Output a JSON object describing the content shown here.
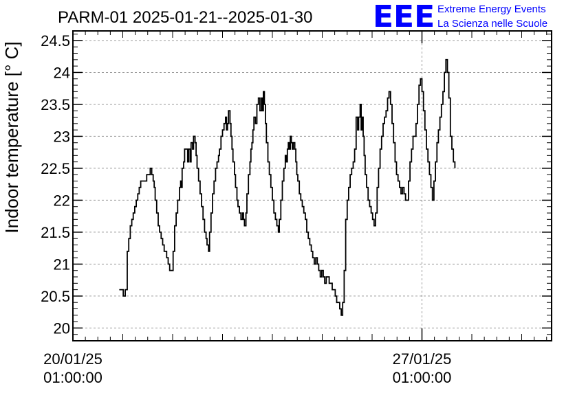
{
  "title": "PARM-01 2025-01-21--2025-01-30",
  "logo": {
    "mark": "EEE",
    "line1": "Extreme Energy Events",
    "line2": "La Scienza nelle Scuole",
    "color": "#0000ff"
  },
  "chart_data": {
    "type": "line",
    "title": "PARM-01 2025-01-21--2025-01-30",
    "xlabel": "",
    "ylabel": "Indoor temperature [° C]",
    "xlim_days": [
      0.0,
      9.6
    ],
    "ylim": [
      19.8,
      24.65
    ],
    "grid": true,
    "line_color": "#000000",
    "yticks": [
      20,
      20.5,
      21,
      21.5,
      22,
      22.5,
      23,
      23.5,
      24,
      24.5
    ],
    "ytick_labels": [
      "20",
      "20.5",
      "21",
      "21.5",
      "22",
      "22.5",
      "23",
      "23.5",
      "24",
      "24.5"
    ],
    "xticks": [
      {
        "x": 0.0,
        "line1": "20/01/25",
        "line2": "01:00:00"
      },
      {
        "x": 7.0,
        "line1": "27/01/25",
        "line2": "01:00:00"
      }
    ],
    "x_units": "days since 20/01/25 01:00:00",
    "series": [
      {
        "name": "",
        "points": [
          [
            0.93,
            20.6
          ],
          [
            1.01,
            20.6
          ],
          [
            1.01,
            20.5
          ],
          [
            1.05,
            20.5
          ],
          [
            1.05,
            20.6
          ],
          [
            1.09,
            20.6
          ],
          [
            1.09,
            21.2
          ],
          [
            1.12,
            21.4
          ],
          [
            1.15,
            21.6
          ],
          [
            1.18,
            21.7
          ],
          [
            1.21,
            21.8
          ],
          [
            1.24,
            21.9
          ],
          [
            1.27,
            22.0
          ],
          [
            1.3,
            22.1
          ],
          [
            1.33,
            22.2
          ],
          [
            1.36,
            22.3
          ],
          [
            1.42,
            22.3
          ],
          [
            1.46,
            22.3
          ],
          [
            1.48,
            22.4
          ],
          [
            1.52,
            22.4
          ],
          [
            1.55,
            22.5
          ],
          [
            1.58,
            22.4
          ],
          [
            1.61,
            22.3
          ],
          [
            1.63,
            22.2
          ],
          [
            1.65,
            22.0
          ],
          [
            1.68,
            21.8
          ],
          [
            1.71,
            21.6
          ],
          [
            1.74,
            21.5
          ],
          [
            1.77,
            21.4
          ],
          [
            1.8,
            21.3
          ],
          [
            1.83,
            21.2
          ],
          [
            1.86,
            21.2
          ],
          [
            1.88,
            21.1
          ],
          [
            1.91,
            21.0
          ],
          [
            1.94,
            20.9
          ],
          [
            1.99,
            20.9
          ],
          [
            2.01,
            21.2
          ],
          [
            2.04,
            21.6
          ],
          [
            2.07,
            21.8
          ],
          [
            2.1,
            22.0
          ],
          [
            2.14,
            22.2
          ],
          [
            2.16,
            22.3
          ],
          [
            2.17,
            22.2
          ],
          [
            2.19,
            22.5
          ],
          [
            2.22,
            22.6
          ],
          [
            2.24,
            22.8
          ],
          [
            2.28,
            22.8
          ],
          [
            2.3,
            22.6
          ],
          [
            2.32,
            22.8
          ],
          [
            2.35,
            22.6
          ],
          [
            2.37,
            22.9
          ],
          [
            2.4,
            22.8
          ],
          [
            2.42,
            23.0
          ],
          [
            2.45,
            22.9
          ],
          [
            2.47,
            22.7
          ],
          [
            2.49,
            22.5
          ],
          [
            2.52,
            22.3
          ],
          [
            2.55,
            22.1
          ],
          [
            2.58,
            21.9
          ],
          [
            2.61,
            21.7
          ],
          [
            2.64,
            21.5
          ],
          [
            2.67,
            21.4
          ],
          [
            2.69,
            21.3
          ],
          [
            2.72,
            21.2
          ],
          [
            2.74,
            21.5
          ],
          [
            2.77,
            21.8
          ],
          [
            2.8,
            22.1
          ],
          [
            2.83,
            22.3
          ],
          [
            2.86,
            22.5
          ],
          [
            2.89,
            22.6
          ],
          [
            2.92,
            22.7
          ],
          [
            2.94,
            22.8
          ],
          [
            2.97,
            23.0
          ],
          [
            3.0,
            23.1
          ],
          [
            3.03,
            23.2
          ],
          [
            3.06,
            23.3
          ],
          [
            3.08,
            23.1
          ],
          [
            3.1,
            23.2
          ],
          [
            3.12,
            23.4
          ],
          [
            3.15,
            23.2
          ],
          [
            3.17,
            23.0
          ],
          [
            3.19,
            22.8
          ],
          [
            3.21,
            22.6
          ],
          [
            3.24,
            22.4
          ],
          [
            3.26,
            22.2
          ],
          [
            3.29,
            22.0
          ],
          [
            3.31,
            21.9
          ],
          [
            3.34,
            21.8
          ],
          [
            3.37,
            21.7
          ],
          [
            3.4,
            21.8
          ],
          [
            3.42,
            21.7
          ],
          [
            3.44,
            21.6
          ],
          [
            3.47,
            21.8
          ],
          [
            3.49,
            22.1
          ],
          [
            3.52,
            22.4
          ],
          [
            3.55,
            22.6
          ],
          [
            3.57,
            22.8
          ],
          [
            3.59,
            22.9
          ],
          [
            3.61,
            23.1
          ],
          [
            3.63,
            23.3
          ],
          [
            3.66,
            23.2
          ],
          [
            3.69,
            23.5
          ],
          [
            3.72,
            23.6
          ],
          [
            3.75,
            23.4
          ],
          [
            3.78,
            23.6
          ],
          [
            3.8,
            23.4
          ],
          [
            3.82,
            23.7
          ],
          [
            3.84,
            23.5
          ],
          [
            3.86,
            23.2
          ],
          [
            3.88,
            22.9
          ],
          [
            3.91,
            22.6
          ],
          [
            3.94,
            22.4
          ],
          [
            3.97,
            22.2
          ],
          [
            4.0,
            22.0
          ],
          [
            4.03,
            21.8
          ],
          [
            4.06,
            21.7
          ],
          [
            4.09,
            21.6
          ],
          [
            4.12,
            21.5
          ],
          [
            4.14,
            21.7
          ],
          [
            4.17,
            22.0
          ],
          [
            4.2,
            22.3
          ],
          [
            4.23,
            22.5
          ],
          [
            4.26,
            22.7
          ],
          [
            4.28,
            22.6
          ],
          [
            4.3,
            22.8
          ],
          [
            4.32,
            22.9
          ],
          [
            4.34,
            22.8
          ],
          [
            4.36,
            23.0
          ],
          [
            4.38,
            22.9
          ],
          [
            4.4,
            22.8
          ],
          [
            4.42,
            22.9
          ],
          [
            4.45,
            22.8
          ],
          [
            4.47,
            22.6
          ],
          [
            4.49,
            22.4
          ],
          [
            4.51,
            22.3
          ],
          [
            4.54,
            22.1
          ],
          [
            4.57,
            22.0
          ],
          [
            4.6,
            21.9
          ],
          [
            4.63,
            21.8
          ],
          [
            4.66,
            21.7
          ],
          [
            4.69,
            21.5
          ],
          [
            4.72,
            21.4
          ],
          [
            4.75,
            21.3
          ],
          [
            4.78,
            21.2
          ],
          [
            4.81,
            21.1
          ],
          [
            4.84,
            21.0
          ],
          [
            4.87,
            21.1
          ],
          [
            4.9,
            21.0
          ],
          [
            4.93,
            20.9
          ],
          [
            4.96,
            20.8
          ],
          [
            4.99,
            20.9
          ],
          [
            5.02,
            20.8
          ],
          [
            5.05,
            20.7
          ],
          [
            5.08,
            20.8
          ],
          [
            5.11,
            20.8
          ],
          [
            5.14,
            20.7
          ],
          [
            5.17,
            20.7
          ],
          [
            5.2,
            20.6
          ],
          [
            5.23,
            20.6
          ],
          [
            5.26,
            20.5
          ],
          [
            5.29,
            20.4
          ],
          [
            5.32,
            20.4
          ],
          [
            5.35,
            20.3
          ],
          [
            5.38,
            20.2
          ],
          [
            5.41,
            20.4
          ],
          [
            5.44,
            20.9
          ],
          [
            5.47,
            21.7
          ],
          [
            5.5,
            22.0
          ],
          [
            5.53,
            22.2
          ],
          [
            5.56,
            22.4
          ],
          [
            5.59,
            22.5
          ],
          [
            5.62,
            22.6
          ],
          [
            5.65,
            22.8
          ],
          [
            5.68,
            23.3
          ],
          [
            5.71,
            23.1
          ],
          [
            5.73,
            23.3
          ],
          [
            5.76,
            23.5
          ],
          [
            5.78,
            23.1
          ],
          [
            5.8,
            23.3
          ],
          [
            5.82,
            23.0
          ],
          [
            5.84,
            22.7
          ],
          [
            5.86,
            22.4
          ],
          [
            5.89,
            22.2
          ],
          [
            5.92,
            22.0
          ],
          [
            5.95,
            21.9
          ],
          [
            5.98,
            21.8
          ],
          [
            6.01,
            21.7
          ],
          [
            6.04,
            21.6
          ],
          [
            6.07,
            21.8
          ],
          [
            6.1,
            22.2
          ],
          [
            6.13,
            22.5
          ],
          [
            6.16,
            22.8
          ],
          [
            6.19,
            23.0
          ],
          [
            6.22,
            23.2
          ],
          [
            6.25,
            23.3
          ],
          [
            6.28,
            23.4
          ],
          [
            6.31,
            23.6
          ],
          [
            6.34,
            23.7
          ],
          [
            6.37,
            23.5
          ],
          [
            6.4,
            23.2
          ],
          [
            6.43,
            22.9
          ],
          [
            6.46,
            22.6
          ],
          [
            6.49,
            22.4
          ],
          [
            6.52,
            22.3
          ],
          [
            6.55,
            22.2
          ],
          [
            6.58,
            22.1
          ],
          [
            6.61,
            22.2
          ],
          [
            6.64,
            22.1
          ],
          [
            6.67,
            22.0
          ],
          [
            6.7,
            22.0
          ],
          [
            6.73,
            22.3
          ],
          [
            6.76,
            22.6
          ],
          [
            6.79,
            22.8
          ],
          [
            6.82,
            23.0
          ],
          [
            6.85,
            23.0
          ],
          [
            6.88,
            23.2
          ],
          [
            6.91,
            23.5
          ],
          [
            6.94,
            23.8
          ],
          [
            6.97,
            23.9
          ],
          [
            7.0,
            23.7
          ],
          [
            7.03,
            23.4
          ],
          [
            7.06,
            23.1
          ],
          [
            7.09,
            22.8
          ],
          [
            7.12,
            22.6
          ],
          [
            7.15,
            22.4
          ],
          [
            7.18,
            22.2
          ],
          [
            7.21,
            22.0
          ],
          [
            7.24,
            22.3
          ],
          [
            7.27,
            22.6
          ],
          [
            7.3,
            22.9
          ],
          [
            7.33,
            23.1
          ],
          [
            7.36,
            23.3
          ],
          [
            7.39,
            23.5
          ],
          [
            7.42,
            23.7
          ],
          [
            7.45,
            24.0
          ],
          [
            7.48,
            24.2
          ],
          [
            7.51,
            24.0
          ],
          [
            7.54,
            23.6
          ],
          [
            7.57,
            23.0
          ],
          [
            7.6,
            22.8
          ],
          [
            7.63,
            22.6
          ],
          [
            7.66,
            22.5
          ]
        ]
      }
    ]
  }
}
